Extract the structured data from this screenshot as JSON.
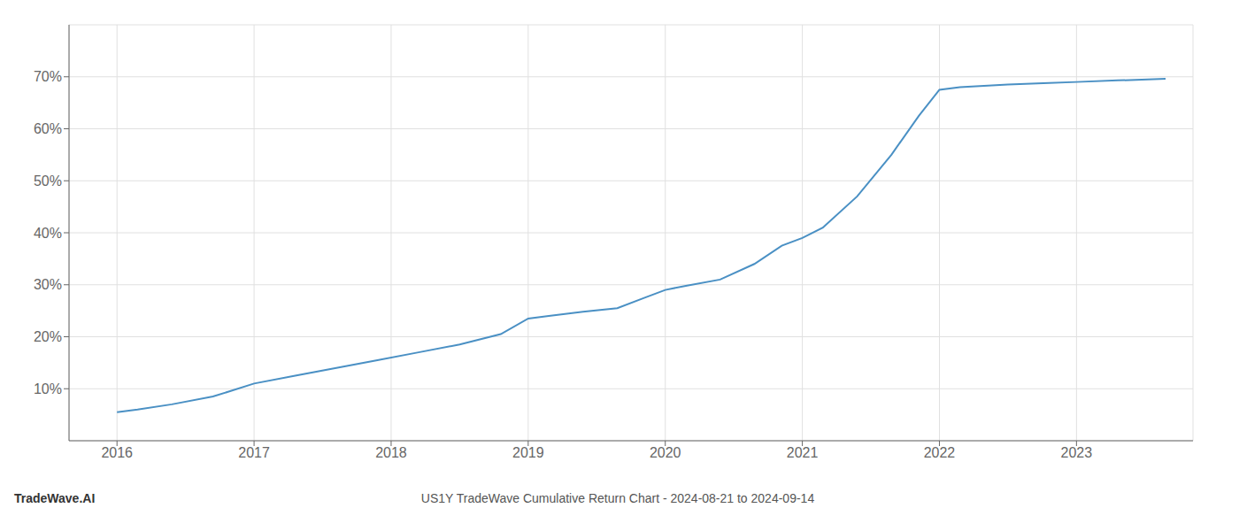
{
  "chart_data": {
    "type": "line",
    "title": "US1Y TradeWave Cumulative Return Chart - 2024-08-21 to 2024-09-14",
    "annotations": [
      "TradeWave.AI"
    ],
    "x": [
      2016.0,
      2016.15,
      2016.4,
      2016.7,
      2017.0,
      2017.3,
      2017.6,
      2017.9,
      2018.2,
      2018.5,
      2018.8,
      2019.0,
      2019.15,
      2019.4,
      2019.65,
      2019.85,
      2020.0,
      2020.15,
      2020.4,
      2020.65,
      2020.85,
      2021.0,
      2021.15,
      2021.4,
      2021.65,
      2021.85,
      2022.0,
      2022.15,
      2022.5,
      2022.8,
      2023.0,
      2023.3,
      2023.65
    ],
    "values": [
      5.5,
      6.0,
      7.0,
      8.5,
      11.0,
      12.5,
      14.0,
      15.5,
      17.0,
      18.5,
      20.5,
      23.5,
      24.0,
      24.8,
      25.5,
      27.5,
      29.0,
      29.8,
      31.0,
      34.0,
      37.5,
      39.0,
      41.0,
      47.0,
      55.0,
      62.5,
      67.5,
      68.0,
      68.5,
      68.8,
      69.0,
      69.3,
      69.6
    ],
    "color": "#4a90c4",
    "xlim": [
      2015.65,
      2023.85
    ],
    "ylim": [
      0,
      80
    ],
    "xticks": [
      2016,
      2017,
      2018,
      2019,
      2020,
      2021,
      2022,
      2023
    ],
    "yticks": [
      {
        "value": 10,
        "label": "10%"
      },
      {
        "value": 20,
        "label": "20%"
      },
      {
        "value": 30,
        "label": "30%"
      },
      {
        "value": 40,
        "label": "40%"
      },
      {
        "value": 50,
        "label": "50%"
      },
      {
        "value": 60,
        "label": "60%"
      },
      {
        "value": 70,
        "label": "70%"
      }
    ],
    "grid": true
  }
}
